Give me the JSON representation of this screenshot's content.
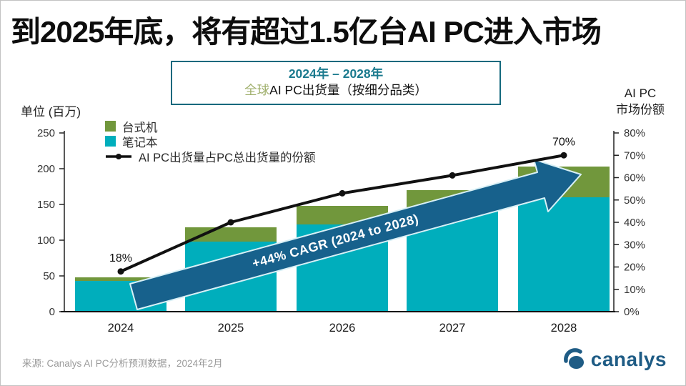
{
  "title": "到2025年底，将有超过1.5亿台AI PC进入市场",
  "subtitle": {
    "line1": "2024年 – 2028年",
    "line2_highlight": "全球",
    "line2_rest": "AI PC出货量（按细分品类）"
  },
  "right_axis_title": {
    "line1": "AI PC",
    "line2": "市场份额"
  },
  "legend": [
    {
      "label": "台式机"
    },
    {
      "label": "笔记本"
    },
    {
      "label": "AI PC出货量占PC总出货量的份额"
    }
  ],
  "footer": {
    "source": "来源: Canalys AI PC分析预测数据，2024年2月"
  },
  "logo": {
    "text": "canalys",
    "color": "#1f5c85"
  },
  "chart_data": {
    "type": "combo",
    "subtype": "stacked-bar + line",
    "title": "全球AI PC出货量（按细分品类），2024年 – 2028年",
    "categories": [
      "2024",
      "2025",
      "2026",
      "2027",
      "2028"
    ],
    "series": [
      {
        "name": "台式机",
        "type": "bar",
        "stack": "shipments",
        "color": "#71973C",
        "values": [
          5,
          20,
          26,
          30,
          43
        ]
      },
      {
        "name": "笔记本",
        "type": "bar",
        "stack": "shipments",
        "color": "#00AEBC",
        "values": [
          43,
          98,
          122,
          140,
          160
        ]
      },
      {
        "name": "AI PC出货量占PC总出货量的份额",
        "type": "line",
        "axis": "right",
        "color": "#111111",
        "values": [
          18,
          40,
          53,
          61,
          70
        ]
      }
    ],
    "left_axis": {
      "title": "单位 (百万)",
      "min": 0,
      "max": 250,
      "ticks": [
        0,
        50,
        100,
        150,
        200,
        250
      ]
    },
    "right_axis": {
      "title": "AI PC 市场份额",
      "min": 0,
      "max": 80,
      "ticks": [
        "0%",
        "10%",
        "20%",
        "30%",
        "40%",
        "50%",
        "60%",
        "70%",
        "80%"
      ]
    },
    "annotations": [
      {
        "category": "2024",
        "text": "18%"
      },
      {
        "category": "2028",
        "text": "70%"
      }
    ],
    "arrow": {
      "label": "+44% CAGR (2024 to 2028)",
      "color": "#17618C",
      "outline": "#D8F0F6"
    },
    "grid": false,
    "legend_position": "top-left"
  }
}
